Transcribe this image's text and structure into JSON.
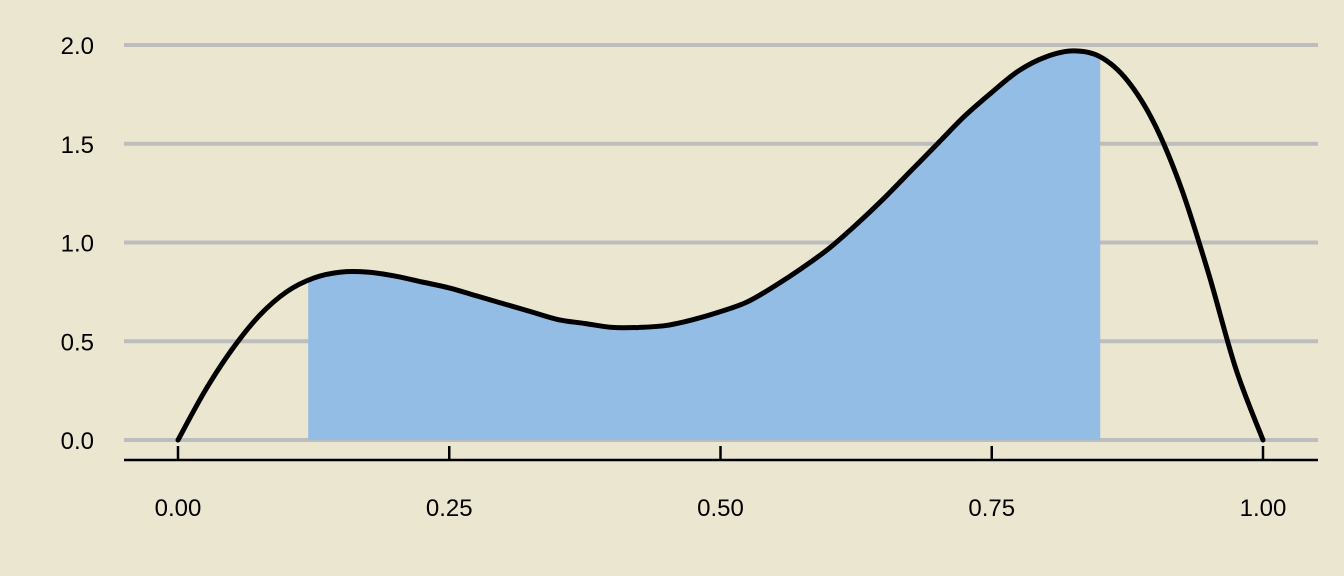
{
  "chart_data": {
    "type": "area",
    "title": "",
    "xlabel": "",
    "ylabel": "",
    "xlim": [
      0,
      1
    ],
    "ylim": [
      0,
      2
    ],
    "x_ticks": [
      0,
      0.25,
      0.5,
      0.75,
      1
    ],
    "x_tick_labels": [
      "0.00",
      "0.25",
      "0.50",
      "0.75",
      "1.00"
    ],
    "y_ticks": [
      0,
      0.5,
      1,
      1.5,
      2
    ],
    "y_tick_labels": [
      "0.0",
      "0.5",
      "1.0",
      "1.5",
      "2.0"
    ],
    "grid": "horizontal",
    "series": [
      {
        "x": [
          0,
          0.025,
          0.05,
          0.075,
          0.1,
          0.125,
          0.15,
          0.175,
          0.2,
          0.225,
          0.25,
          0.275,
          0.3,
          0.325,
          0.35,
          0.375,
          0.4,
          0.425,
          0.45,
          0.475,
          0.5,
          0.525,
          0.55,
          0.575,
          0.6,
          0.625,
          0.65,
          0.675,
          0.7,
          0.725,
          0.75,
          0.775,
          0.8,
          0.825,
          0.85,
          0.875,
          0.9,
          0.925,
          0.95,
          0.975,
          1
        ],
        "y": [
          0,
          0.25,
          0.46,
          0.63,
          0.75,
          0.82,
          0.85,
          0.85,
          0.83,
          0.8,
          0.77,
          0.73,
          0.69,
          0.65,
          0.61,
          0.59,
          0.57,
          0.57,
          0.58,
          0.61,
          0.65,
          0.7,
          0.78,
          0.87,
          0.97,
          1.09,
          1.22,
          1.36,
          1.5,
          1.64,
          1.76,
          1.87,
          1.94,
          1.97,
          1.94,
          1.82,
          1.6,
          1.27,
          0.84,
          0.36,
          0
        ]
      }
    ],
    "shaded_region": {
      "x_start": 0.12,
      "x_end": 0.85
    },
    "colors": {
      "background": "#ebe6cf",
      "fill": "#94bde6",
      "line": "#000000",
      "grid": "#bdbdbd"
    }
  }
}
